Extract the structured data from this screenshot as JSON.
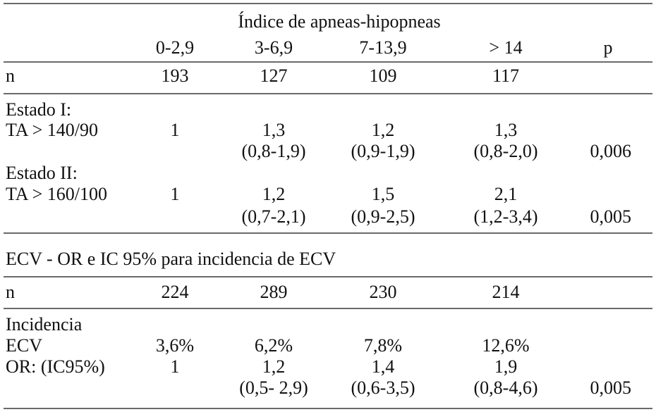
{
  "table": {
    "title": "Índice de apneas-hipopneas",
    "columns": [
      "0-2,9",
      "3-6,9",
      "7-13,9",
      "> 14",
      "p"
    ],
    "rows": [
      [
        "n",
        "193",
        "127",
        "109",
        "117",
        null
      ],
      [
        "Estado I:",
        null,
        null,
        null,
        null,
        null
      ],
      [
        "TA > 140/90",
        "1",
        "1,3",
        "1,2",
        "1,3",
        null
      ],
      [
        null,
        null,
        "(0,8-1,9)",
        "(0,9-1,9)",
        "(0,8-2,0)",
        "0,006"
      ],
      [
        "Estado II:",
        null,
        null,
        null,
        null,
        null
      ],
      [
        "TA > 160/100",
        "1",
        "1,2",
        "1,5",
        "2,1",
        null
      ],
      [
        null,
        null,
        "(0,7-2,1)",
        "(0,9-2,5)",
        "(1,2-3,4)",
        "0,005"
      ]
    ],
    "section_title": "ECV - OR e IC 95% para incidencia de ECV",
    "section_rows": [
      [
        "n",
        "224",
        "289",
        "230",
        "214",
        null
      ],
      [
        "Incidencia",
        null,
        null,
        null,
        null,
        null
      ],
      [
        "ECV",
        "3,6%",
        "6,2%",
        "7,8%",
        "12,6%",
        null
      ],
      [
        "OR: (IC95%)",
        "1",
        "1,2",
        "1,4",
        "1,9",
        null
      ],
      [
        null,
        null,
        "(0,5- 2,9)",
        "(0,6-3,5)",
        "(0,8-4,6)",
        "0,005"
      ]
    ]
  }
}
